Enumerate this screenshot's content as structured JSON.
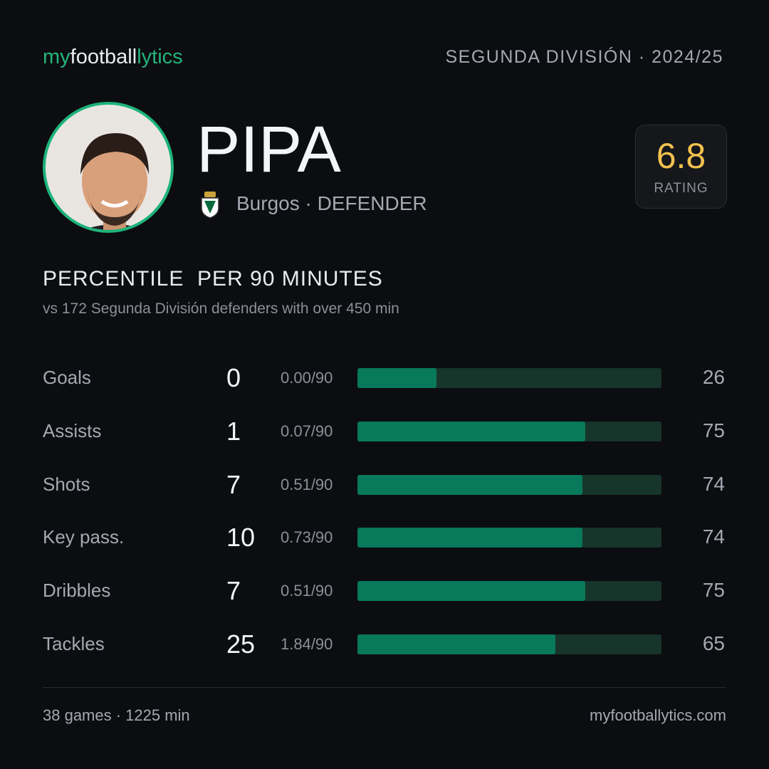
{
  "header": {
    "logo": [
      "my",
      "football",
      "lytics"
    ],
    "competition": "SEGUNDA DIVISIÓN · 2024/25"
  },
  "player": {
    "name": "PIPA",
    "info": "Burgos · DEFENDER",
    "rating": "6.8",
    "rating_label": "RATING"
  },
  "section": {
    "title": "PERCENTILE  PER 90 MINUTES",
    "subtitle": "vs 172 Segunda División defenders with over 450 min"
  },
  "stats": {
    "xlim": [
      0,
      100
    ],
    "rows": [
      {
        "label": "Goals",
        "total": 0,
        "per90": "0.00/90",
        "percentile": 26
      },
      {
        "label": "Assists",
        "total": 1,
        "per90": "0.07/90",
        "percentile": 75
      },
      {
        "label": "Shots",
        "total": 7,
        "per90": "0.51/90",
        "percentile": 74
      },
      {
        "label": "Key pass.",
        "total": 10,
        "per90": "0.73/90",
        "percentile": 74
      },
      {
        "label": "Dribbles",
        "total": 7,
        "per90": "0.51/90",
        "percentile": 75
      },
      {
        "label": "Tackles",
        "total": 25,
        "per90": "1.84/90",
        "percentile": 65
      }
    ]
  },
  "footer": {
    "summary": "38 games · 1225 min",
    "site": "myfootballytics.com"
  }
}
